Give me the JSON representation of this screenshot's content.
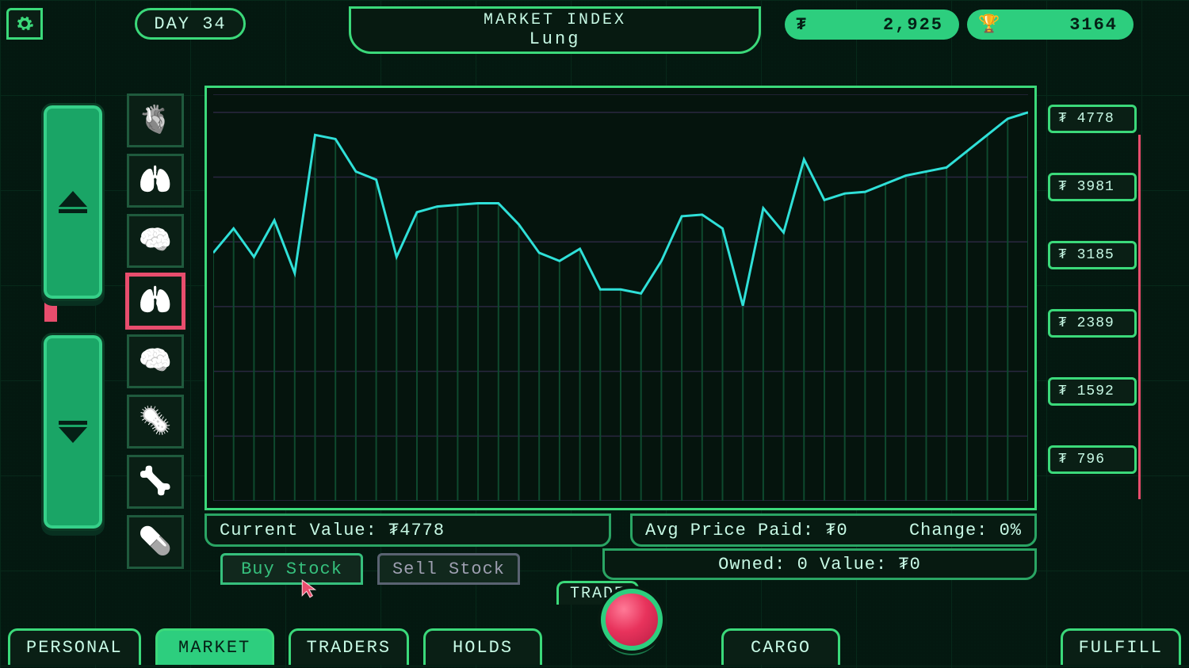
{
  "hud": {
    "day_label": "DAY 34",
    "index_title": "MARKET INDEX",
    "index_item": "Lung",
    "money": "2,925",
    "score": "3164"
  },
  "organs": [
    {
      "name": "organ-1",
      "glyph": "🫀",
      "selected": false
    },
    {
      "name": "organ-2",
      "glyph": "🫁",
      "selected": false
    },
    {
      "name": "organ-3",
      "glyph": "🧠",
      "selected": false
    },
    {
      "name": "organ-4-lung",
      "glyph": "🫁",
      "selected": true
    },
    {
      "name": "organ-5",
      "glyph": "🧠",
      "selected": false
    },
    {
      "name": "organ-6",
      "glyph": "🦠",
      "selected": false
    },
    {
      "name": "organ-7",
      "glyph": "🦴",
      "selected": false
    },
    {
      "name": "organ-8",
      "glyph": "💊",
      "selected": false
    }
  ],
  "chart": {
    "type": "line",
    "line_color": "#2fe0d8",
    "grid_color": "#0e4a2e",
    "grid_h_color": "#2a2740",
    "background_color": "#05140d",
    "border_color": "#3bd97a",
    "xlim": [
      0,
      40
    ],
    "ylim": [
      0,
      5000
    ],
    "y_ticks": [
      4778,
      3981,
      3185,
      2389,
      1592,
      796
    ],
    "y_tick_prefix": "₮",
    "line_width": 3,
    "points": [
      [
        0,
        3050
      ],
      [
        1,
        3350
      ],
      [
        2,
        3000
      ],
      [
        3,
        3450
      ],
      [
        4,
        2800
      ],
      [
        5,
        4500
      ],
      [
        6,
        4450
      ],
      [
        7,
        4050
      ],
      [
        8,
        3950
      ],
      [
        9,
        3000
      ],
      [
        10,
        3550
      ],
      [
        11,
        3620
      ],
      [
        12,
        3640
      ],
      [
        13,
        3660
      ],
      [
        14,
        3660
      ],
      [
        15,
        3400
      ],
      [
        16,
        3050
      ],
      [
        17,
        2950
      ],
      [
        18,
        3100
      ],
      [
        19,
        2600
      ],
      [
        20,
        2600
      ],
      [
        21,
        2550
      ],
      [
        22,
        2950
      ],
      [
        23,
        3500
      ],
      [
        24,
        3520
      ],
      [
        25,
        3350
      ],
      [
        26,
        2400
      ],
      [
        27,
        3600
      ],
      [
        28,
        3300
      ],
      [
        29,
        4200
      ],
      [
        30,
        3700
      ],
      [
        31,
        3780
      ],
      [
        32,
        3800
      ],
      [
        33,
        3900
      ],
      [
        34,
        4000
      ],
      [
        35,
        4050
      ],
      [
        36,
        4100
      ],
      [
        37,
        4300
      ],
      [
        38,
        4500
      ],
      [
        39,
        4700
      ],
      [
        40,
        4778
      ]
    ]
  },
  "info": {
    "current_value_label": "Current Value:",
    "current_value": "₮4778",
    "avg_label": "Avg Price Paid:",
    "avg_value": "₮0",
    "change_label": "Change:",
    "change_value": "0%",
    "owned_label": "Owned: 0 Value: ₮0"
  },
  "actions": {
    "buy": "Buy Stock",
    "sell": "Sell Stock"
  },
  "tabs": {
    "personal": "PERSONAL",
    "market": "MARKET",
    "traders": "TRADERS",
    "holds": "HOLDS",
    "trade": "TRADE",
    "cargo": "CARGO",
    "fulfill": "FULFILL",
    "active": "market"
  },
  "colors": {
    "green": "#3bd97a",
    "green_fill": "#2dce7e",
    "dark": "#0a1f15",
    "bg": "#041810",
    "pink": "#e84d6d",
    "cyan": "#2fe0d8",
    "text": "#c7f9e5"
  }
}
